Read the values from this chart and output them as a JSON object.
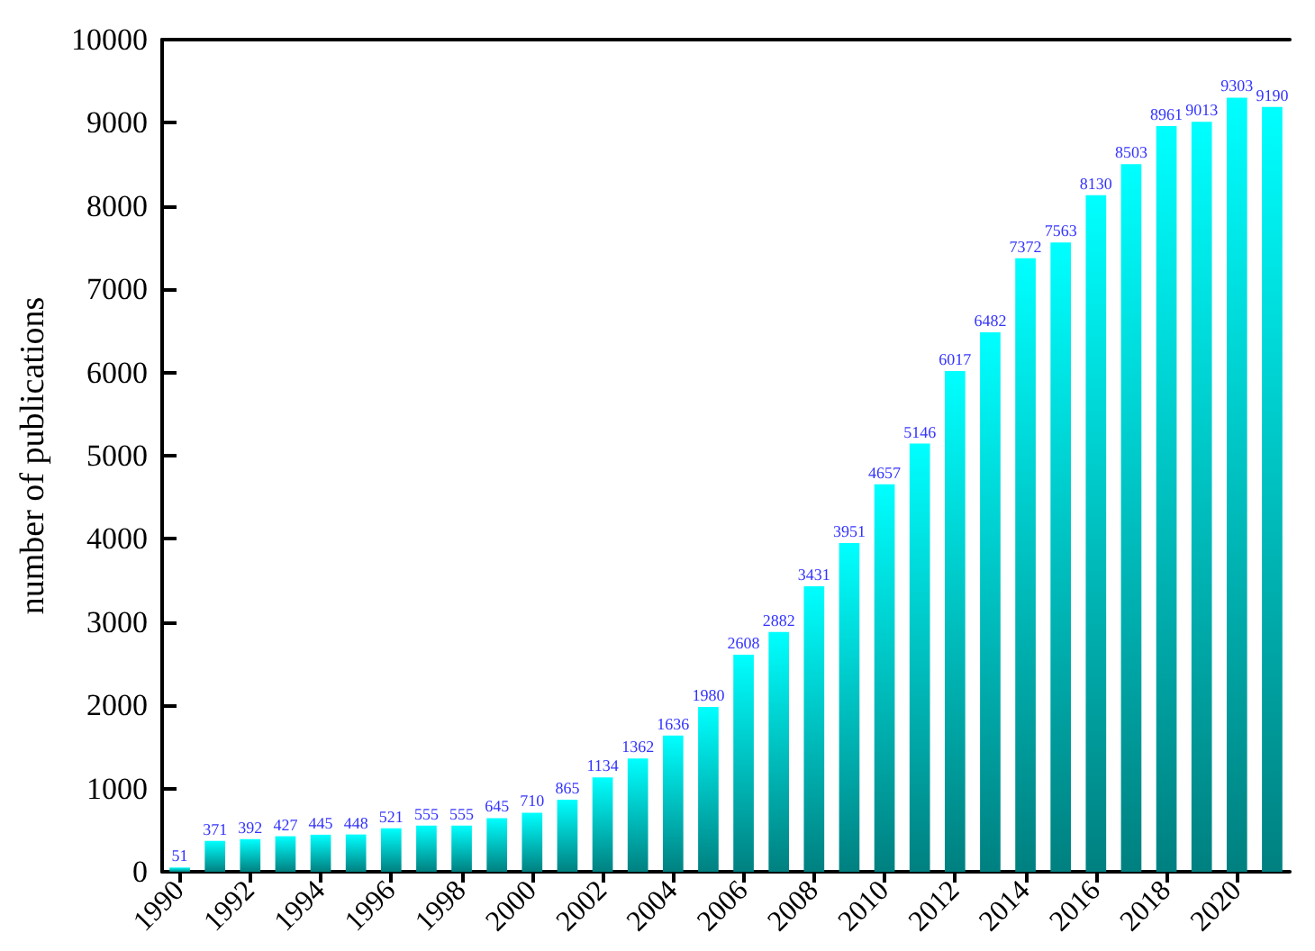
{
  "chart_data": {
    "type": "bar",
    "ylabel": "number of publications",
    "categories": [
      "1990",
      null,
      "1992",
      null,
      "1994",
      null,
      "1996",
      null,
      "1998",
      null,
      "2000",
      null,
      "2002",
      null,
      "2004",
      null,
      "2006",
      null,
      "2008",
      null,
      "2010",
      null,
      "2012",
      null,
      "2014",
      null,
      "2016",
      null,
      "2018",
      null,
      "2020",
      null
    ],
    "values": [
      51,
      371,
      392,
      427,
      445,
      448,
      521,
      555,
      555,
      645,
      710,
      865,
      1134,
      1362,
      1636,
      1980,
      2608,
      2882,
      3431,
      3951,
      4657,
      5146,
      6017,
      6482,
      7372,
      7563,
      8130,
      8503,
      8961,
      9013,
      9303,
      9190
    ],
    "color": "#00ffff",
    "ylim": [
      0,
      10000
    ],
    "yticks": [
      0,
      1000,
      2000,
      3000,
      4000,
      5000,
      6000,
      7000,
      8000,
      9000,
      10000
    ],
    "grid": false,
    "data_labels": true
  }
}
